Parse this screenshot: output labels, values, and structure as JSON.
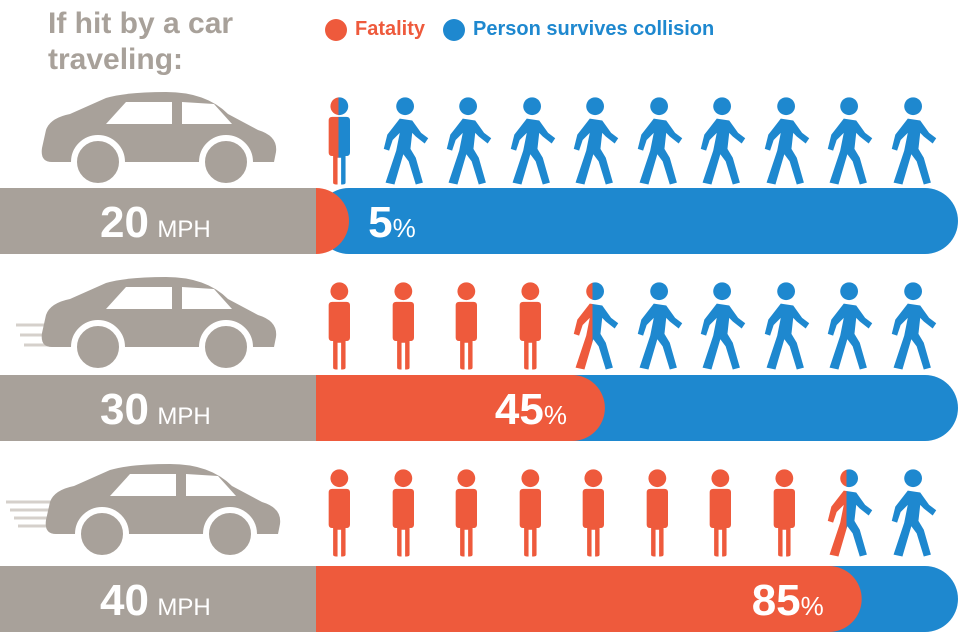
{
  "headline": "If hit by a car traveling:",
  "legend": {
    "fatality": "Fatality",
    "survives": "Person survives collision"
  },
  "colors": {
    "fatality": "#ee5a3c",
    "survives": "#1e88cf",
    "gray": "#a8a19a"
  },
  "chart_data": {
    "type": "bar",
    "title": "If hit by a car traveling:",
    "categories": [
      "20 MPH",
      "30 MPH",
      "40 MPH"
    ],
    "series": [
      {
        "name": "Fatality",
        "values": [
          5,
          45,
          85
        ]
      },
      {
        "name": "Person survives collision",
        "values": [
          95,
          55,
          15
        ]
      }
    ],
    "ylim": [
      0,
      100
    ],
    "legend_position": "top",
    "rows": [
      {
        "speed": "20",
        "unit": "MPH",
        "percent": "5",
        "percent_sign": "%",
        "fatality_figures": 0.5
      },
      {
        "speed": "30",
        "unit": "MPH",
        "percent": "45",
        "percent_sign": "%",
        "fatality_figures": 4.5
      },
      {
        "speed": "40",
        "unit": "MPH",
        "percent": "85",
        "percent_sign": "%",
        "fatality_figures": 8.5
      }
    ]
  }
}
